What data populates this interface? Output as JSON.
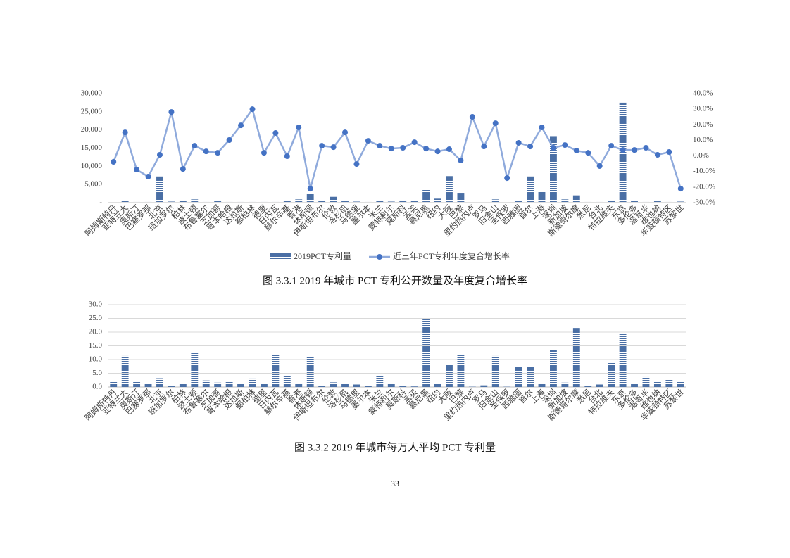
{
  "chart_data": [
    {
      "type": "bar-line",
      "title": "图 3.3.1 2019 年城市 PCT 专利公开数量及年度复合增长率",
      "categories": [
        "阿姆斯特丹",
        "亚特兰大",
        "奥斯汀",
        "巴塞罗那",
        "北京",
        "班加罗尔",
        "柏林",
        "波士顿",
        "布鲁塞尔",
        "芝加哥",
        "哥本哈根",
        "达拉斯",
        "都柏林",
        "德里",
        "日内瓦",
        "赫尔辛基",
        "香港",
        "休斯顿",
        "伊斯坦布尔",
        "伦敦",
        "洛杉矶",
        "马德里",
        "墨尔本",
        "米兰",
        "蒙特利尔",
        "莫斯科",
        "孟买",
        "慕尼黑",
        "纽约",
        "大阪",
        "巴黎",
        "里约热内卢",
        "罗马",
        "旧金山",
        "圣保罗",
        "西雅图",
        "首尔",
        "上海",
        "深圳",
        "新加坡",
        "斯德哥尔摩",
        "悉尼",
        "台北",
        "特拉维夫",
        "东京",
        "多伦多",
        "温哥华",
        "维也纳",
        "华盛顿特区",
        "苏黎世"
      ],
      "series": [
        {
          "name": "2019PCT专利量",
          "type": "bar",
          "color": "#4a6fa5",
          "values": [
            100,
            500,
            200,
            200,
            7200,
            300,
            400,
            900,
            200,
            500,
            200,
            200,
            200,
            200,
            200,
            400,
            900,
            2500,
            700,
            1600,
            500,
            300,
            200,
            500,
            300,
            500,
            400,
            3600,
            1100,
            7300,
            2700,
            50,
            100,
            900,
            100,
            400,
            7200,
            3100,
            18300,
            900,
            2000,
            200,
            200,
            400,
            27500,
            400,
            200,
            400,
            200,
            300
          ]
        },
        {
          "name": "近三年PCT专利年度复合增长率",
          "type": "line",
          "axis": "y2",
          "color": "#8faadc",
          "marker_color": "#4472c4",
          "values": [
            -3.8,
            15.1,
            -8.8,
            -13.3,
            0.7,
            28.2,
            -8.4,
            6.5,
            2.9,
            2.0,
            10.2,
            19.6,
            30.0,
            2.0,
            14.7,
            -0.2,
            18.3,
            -21.0,
            6.5,
            5.6,
            15.1,
            -5.2,
            9.7,
            6.5,
            4.7,
            5.2,
            8.8,
            4.7,
            2.9,
            4.3,
            -2.9,
            25.1,
            6.1,
            21.0,
            -14.2,
            8.4,
            6.1,
            18.3,
            5.2,
            7.0,
            3.4,
            2.0,
            -6.5,
            6.5,
            3.8,
            3.8,
            5.2,
            0.7,
            2.5,
            -21.0
          ]
        }
      ],
      "ylim": [
        0,
        30000
      ],
      "yticks": [
        {
          "value": 0,
          "label": "-"
        },
        {
          "value": 5000,
          "label": "5,000"
        },
        {
          "value": 10000,
          "label": "10,000"
        },
        {
          "value": 15000,
          "label": "15,000"
        },
        {
          "value": 20000,
          "label": "20,000"
        },
        {
          "value": 25000,
          "label": "25,000"
        },
        {
          "value": 30000,
          "label": "30,000"
        }
      ],
      "y2lim": [
        -30,
        40
      ],
      "y2ticks": [
        {
          "value": -30,
          "label": "-30.0%"
        },
        {
          "value": -20,
          "label": "-20.0%"
        },
        {
          "value": -10,
          "label": "-10.0%"
        },
        {
          "value": 0,
          "label": "0.0%"
        },
        {
          "value": 10,
          "label": "10.0%"
        },
        {
          "value": 20,
          "label": "20.0%"
        },
        {
          "value": 30,
          "label": "30.0%"
        },
        {
          "value": 40,
          "label": "40.0%"
        }
      ],
      "grid": false,
      "legend": "bottom"
    },
    {
      "type": "bar",
      "title": "图 3.3.2 2019 年城市每万人平均 PCT 专利量",
      "categories": [
        "阿姆斯特丹",
        "亚特兰大",
        "奥斯汀",
        "巴塞罗那",
        "北京",
        "班加罗尔",
        "柏林",
        "波士顿",
        "布鲁塞尔",
        "芝加哥",
        "哥本哈根",
        "达拉斯",
        "都柏林",
        "德里",
        "日内瓦",
        "赫尔辛基",
        "香港",
        "休斯顿",
        "伊斯坦布尔",
        "伦敦",
        "洛杉矶",
        "马德里",
        "墨尔本",
        "米兰",
        "蒙特利尔",
        "莫斯科",
        "孟买",
        "慕尼黑",
        "纽约",
        "大阪",
        "巴黎",
        "里约热内卢",
        "罗马",
        "旧金山",
        "圣保罗",
        "西雅图",
        "首尔",
        "上海",
        "深圳",
        "新加坡",
        "斯德哥尔摩",
        "悉尼",
        "台北",
        "特拉维夫",
        "东京",
        "多伦多",
        "温哥华",
        "维也纳",
        "华盛顿特区",
        "苏黎世"
      ],
      "color": "#4a6fa5",
      "values": [
        2.0,
        11.3,
        2.1,
        1.4,
        3.2,
        0.5,
        1.1,
        12.8,
        2.4,
        1.6,
        2.2,
        1.1,
        3.1,
        1.5,
        12.0,
        4.2,
        1.2,
        10.8,
        0.3,
        1.7,
        1.1,
        0.9,
        0.4,
        4.1,
        1.4,
        0.4,
        0.2,
        24.8,
        1.3,
        8.3,
        11.9,
        0.1,
        0.6,
        11.3,
        0.1,
        7.3,
        7.2,
        1.2,
        13.5,
        1.6,
        21.5,
        0.4,
        0.9,
        8.8,
        19.6,
        1.1,
        3.6,
        2.1,
        2.6,
        1.8
      ],
      "ylim": [
        0,
        30
      ],
      "yticks": [
        {
          "value": 0,
          "label": "0.0"
        },
        {
          "value": 5,
          "label": "5.0"
        },
        {
          "value": 10,
          "label": "10.0"
        },
        {
          "value": 15,
          "label": "15.0"
        },
        {
          "value": 20,
          "label": "20.0"
        },
        {
          "value": 25,
          "label": "25.0"
        },
        {
          "value": 30,
          "label": "30.0"
        }
      ],
      "grid": true
    }
  ],
  "page_number": "33"
}
